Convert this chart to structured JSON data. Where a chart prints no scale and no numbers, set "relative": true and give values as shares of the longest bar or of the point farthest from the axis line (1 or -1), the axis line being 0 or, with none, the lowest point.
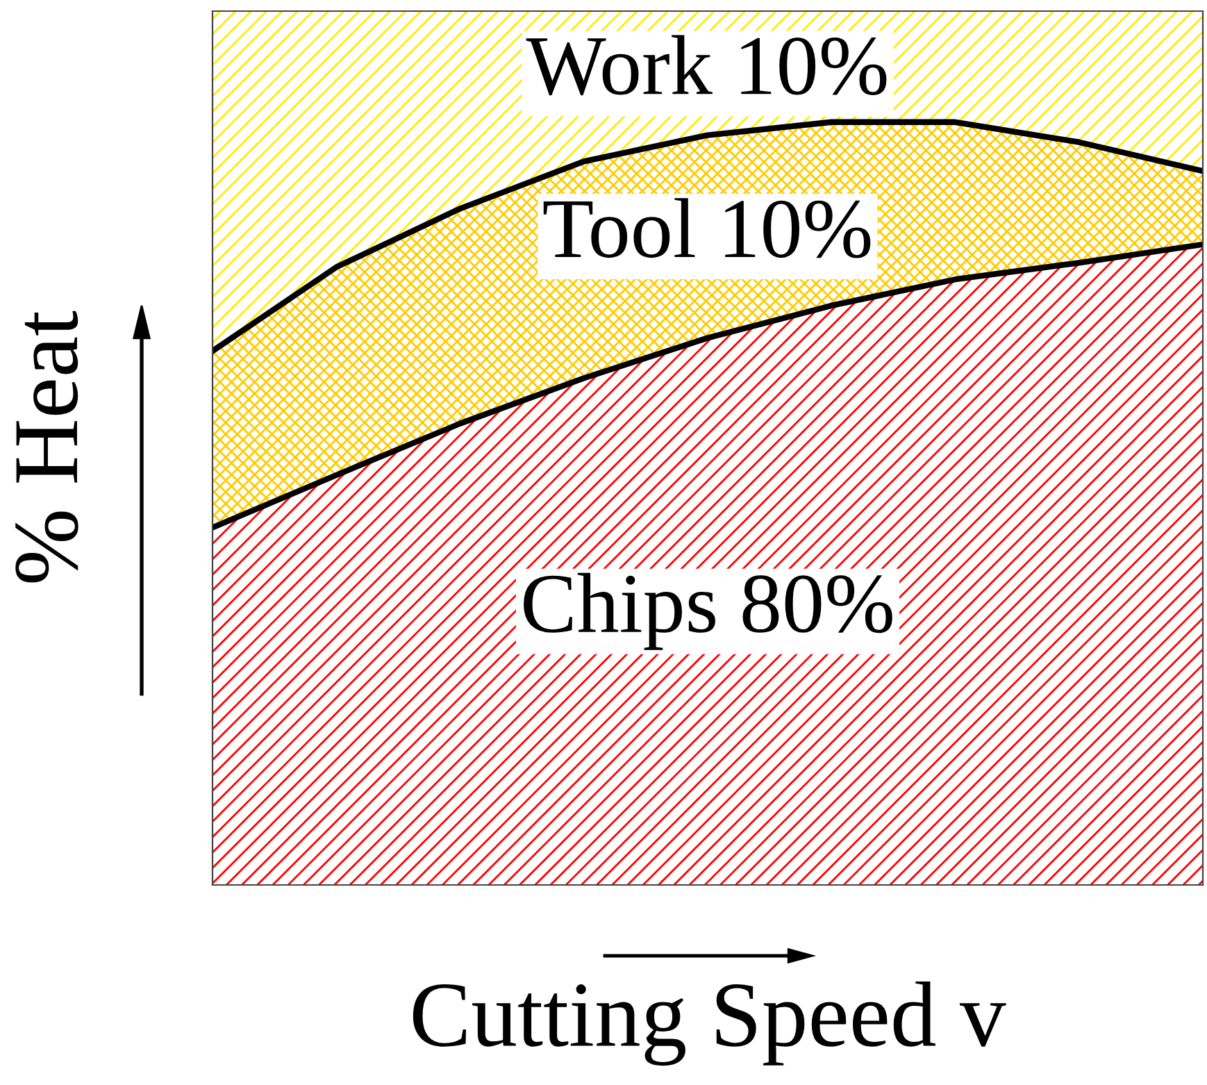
{
  "chart_data": {
    "type": "area",
    "stacked": true,
    "relative": true,
    "xlabel": "Cutting Speed v",
    "ylabel": "% Heat",
    "categories": [
      null,
      null,
      null,
      null,
      null,
      null,
      null,
      null,
      null
    ],
    "series": [
      {
        "name": "Chips 80%",
        "color": "#ff0000",
        "values": [
          0.409,
          0.469,
          0.528,
          0.58,
          0.626,
          0.663,
          0.693,
          0.712,
          0.733
        ]
      },
      {
        "name": "Tool 10%",
        "color": "#ffcc00",
        "values": [
          0.202,
          0.238,
          0.246,
          0.248,
          0.232,
          0.21,
          0.18,
          0.138,
          0.084
        ]
      },
      {
        "name": "Work 10%",
        "color": "#ffee00",
        "values": [
          0.389,
          0.293,
          0.226,
          0.172,
          0.141,
          0.127,
          0.127,
          0.149,
          0.183
        ]
      }
    ],
    "tick_labels": false
  }
}
